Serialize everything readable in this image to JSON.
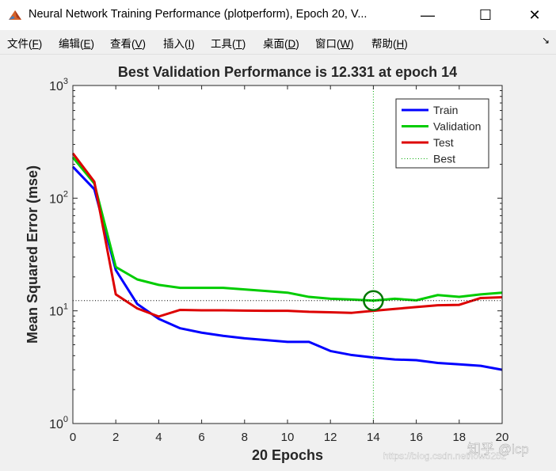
{
  "window": {
    "title": "Neural Network Training Performance (plotperform), Epoch 20, V...",
    "minimize": "—",
    "maximize": "☐",
    "close": "✕"
  },
  "menu": [
    {
      "label": "文件",
      "hotkey": "F"
    },
    {
      "label": "编辑",
      "hotkey": "E"
    },
    {
      "label": "查看",
      "hotkey": "V"
    },
    {
      "label": "插入",
      "hotkey": "I"
    },
    {
      "label": "工具",
      "hotkey": "T"
    },
    {
      "label": "桌面",
      "hotkey": "D"
    },
    {
      "label": "窗口",
      "hotkey": "W"
    },
    {
      "label": "帮助",
      "hotkey": "H"
    }
  ],
  "chart_data": {
    "type": "line",
    "title": "Best Validation Performance is 12.331 at epoch 14",
    "xlabel": "20 Epochs",
    "ylabel": "Mean Squared Error  (mse)",
    "yscale": "log",
    "xlim": [
      0,
      20
    ],
    "ylim": [
      1,
      1000
    ],
    "xticks": [
      0,
      2,
      4,
      6,
      8,
      10,
      12,
      14,
      16,
      18,
      20
    ],
    "yticks": [
      {
        "value": 1,
        "base": "10",
        "exp": "0"
      },
      {
        "value": 10,
        "base": "10",
        "exp": "1"
      },
      {
        "value": 100,
        "base": "10",
        "exp": "2"
      },
      {
        "value": 1000,
        "base": "10",
        "exp": "3"
      }
    ],
    "x": [
      0,
      1,
      2,
      3,
      4,
      5,
      6,
      7,
      8,
      9,
      10,
      11,
      12,
      13,
      14,
      15,
      16,
      17,
      18,
      19,
      20
    ],
    "series": [
      {
        "name": "Train",
        "color": "#0000ff",
        "values": [
          190,
          120,
          23,
          11.5,
          8.5,
          7,
          6.4,
          6,
          5.7,
          5.5,
          5.3,
          5.3,
          4.4,
          4.05,
          3.85,
          3.7,
          3.65,
          3.45,
          3.35,
          3.25,
          3.0
        ]
      },
      {
        "name": "Validation",
        "color": "#00cc00",
        "values": [
          230,
          135,
          24.5,
          19,
          17,
          16,
          16,
          16,
          15.5,
          15,
          14.5,
          13.3,
          12.8,
          12.6,
          12.331,
          12.8,
          12.4,
          13.8,
          13.3,
          14,
          14.5
        ]
      },
      {
        "name": "Test",
        "color": "#dd0000",
        "values": [
          250,
          140,
          14,
          10.5,
          8.9,
          10.2,
          10.1,
          10.1,
          10.05,
          10,
          10,
          9.8,
          9.7,
          9.6,
          10,
          10.4,
          10.8,
          11.2,
          11.3,
          13,
          13.2
        ]
      }
    ],
    "best": {
      "epoch": 14,
      "value": 12.331,
      "label": "Best",
      "color": "#00aa00"
    },
    "legend": {
      "placement": "top-right",
      "entries": [
        "Train",
        "Validation",
        "Test",
        "Best"
      ]
    }
  },
  "watermark": {
    "text1": "知乎 @lcp",
    "text2": "https://blog.csdn.net/low5252"
  }
}
